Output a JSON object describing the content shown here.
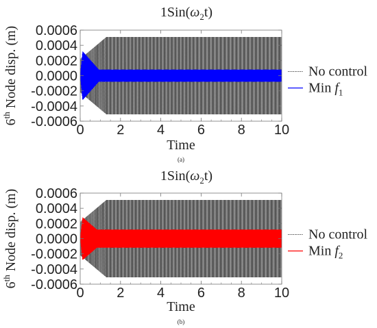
{
  "chart_data": [
    {
      "type": "line",
      "panel_label": "(a)",
      "title": {
        "prefix": "1Sin(",
        "omega": "ω",
        "sub": "2",
        "suffix": "t)"
      },
      "ylabel": {
        "sup_pre": "6",
        "sup": "th",
        "rest": " Node disp. (m)"
      },
      "xlabel": "Time",
      "xlim": [
        0,
        10
      ],
      "ylim": [
        -0.0006,
        0.0006
      ],
      "xticks": [
        "0",
        "2",
        "4",
        "6",
        "8",
        "10"
      ],
      "yticks": [
        "0.0006",
        "0.0004",
        "0.0002",
        "0.0000",
        "-0.0002",
        "-0.0004",
        "-0.0006"
      ],
      "series": [
        {
          "name": "No control",
          "color": "#555555",
          "style": "dotted",
          "envelope": {
            "steady_amplitude": 0.00051,
            "growth_time": 1.3,
            "start_amplitude": 0.00022
          }
        },
        {
          "name_prefix": "Min ",
          "name_var": "f",
          "name_sub": "1",
          "color": "#0000ff",
          "style": "solid",
          "envelope": {
            "steady_amplitude": 8e-05,
            "peak_amplitude": 0.00032,
            "peak_time": 0.12,
            "decay_time": 0.8
          }
        }
      ]
    },
    {
      "type": "line",
      "panel_label": "(b)",
      "title": {
        "prefix": "1Sin(",
        "omega": "ω",
        "sub": "2",
        "suffix": "t)"
      },
      "ylabel": {
        "sup_pre": "6",
        "sup": "th",
        "rest": " Node disp. (m)"
      },
      "xlabel": "Time",
      "xlim": [
        0,
        10
      ],
      "ylim": [
        -0.0006,
        0.0006
      ],
      "xticks": [
        "0",
        "2",
        "4",
        "6",
        "8",
        "10"
      ],
      "yticks": [
        "0.0006",
        "0.0004",
        "0.0002",
        "0.0000",
        "-0.0002",
        "-0.0004",
        "-0.0006"
      ],
      "series": [
        {
          "name": "No control",
          "color": "#555555",
          "style": "dotted",
          "envelope": {
            "steady_amplitude": 0.00051,
            "growth_time": 1.3,
            "start_amplitude": 0.00022
          }
        },
        {
          "name_prefix": "Min ",
          "name_var": "f",
          "name_sub": "2",
          "color": "#ff0000",
          "style": "solid",
          "envelope": {
            "steady_amplitude": 0.00012,
            "peak_amplitude": 0.00028,
            "peak_time": 0.12,
            "decay_time": 0.7
          }
        }
      ]
    }
  ]
}
